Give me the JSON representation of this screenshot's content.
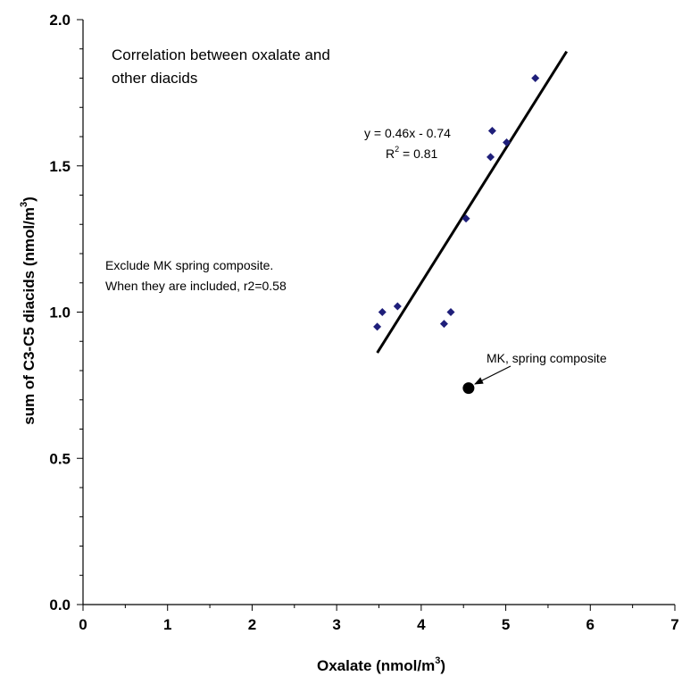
{
  "chart_data": {
    "type": "scatter",
    "xlabel": "Oxalate (nmol/m",
    "xlabel_sup": "3",
    "xlabel_end": ")",
    "ylabel": "sum of C3-C5 diacids (nmol/m",
    "ylabel_sup": "3",
    "ylabel_end": ")",
    "xlim": [
      0,
      7
    ],
    "ylim": [
      0,
      2
    ],
    "x_ticks": [
      0,
      1,
      2,
      3,
      4,
      5,
      6,
      7
    ],
    "x_tick_labels": [
      "0",
      "1",
      "2",
      "3",
      "4",
      "5",
      "6",
      "7"
    ],
    "y_ticks": [
      0,
      0.5,
      1,
      1.5,
      2
    ],
    "y_tick_labels": [
      "0.0",
      "0.5",
      "1.0",
      "1.5",
      "2.0"
    ],
    "grid": false,
    "series": [
      {
        "marker": "diamond",
        "color": "#1f1f7a",
        "points": [
          {
            "x": 3.48,
            "y": 0.95
          },
          {
            "x": 3.54,
            "y": 1.0
          },
          {
            "x": 3.72,
            "y": 1.02
          },
          {
            "x": 4.27,
            "y": 0.96
          },
          {
            "x": 4.35,
            "y": 1.0
          },
          {
            "x": 4.53,
            "y": 1.32
          },
          {
            "x": 4.82,
            "y": 1.53
          },
          {
            "x": 4.84,
            "y": 1.62
          },
          {
            "x": 5.01,
            "y": 1.58
          },
          {
            "x": 5.35,
            "y": 1.8
          }
        ]
      },
      {
        "marker": "circle",
        "color": "#000000",
        "points": [
          {
            "x": 4.56,
            "y": 0.74
          }
        ]
      }
    ],
    "trendline": {
      "slope": 0.46,
      "intercept": -0.74,
      "x_start": 3.48,
      "x_end": 5.72,
      "equation_label": "y = 0.46x - 0.74",
      "r2_label_prefix": "R",
      "r2_label_sup": "2",
      "r2_label_suffix": " = 0.81"
    },
    "annotations": {
      "title_line1": "Correlation between oxalate and",
      "title_line2": "other diacids",
      "note_line1": "Exclude MK spring composite.",
      "note_line2": "When they are included, r2=0.58",
      "outlier_label": "MK, spring composite"
    }
  }
}
